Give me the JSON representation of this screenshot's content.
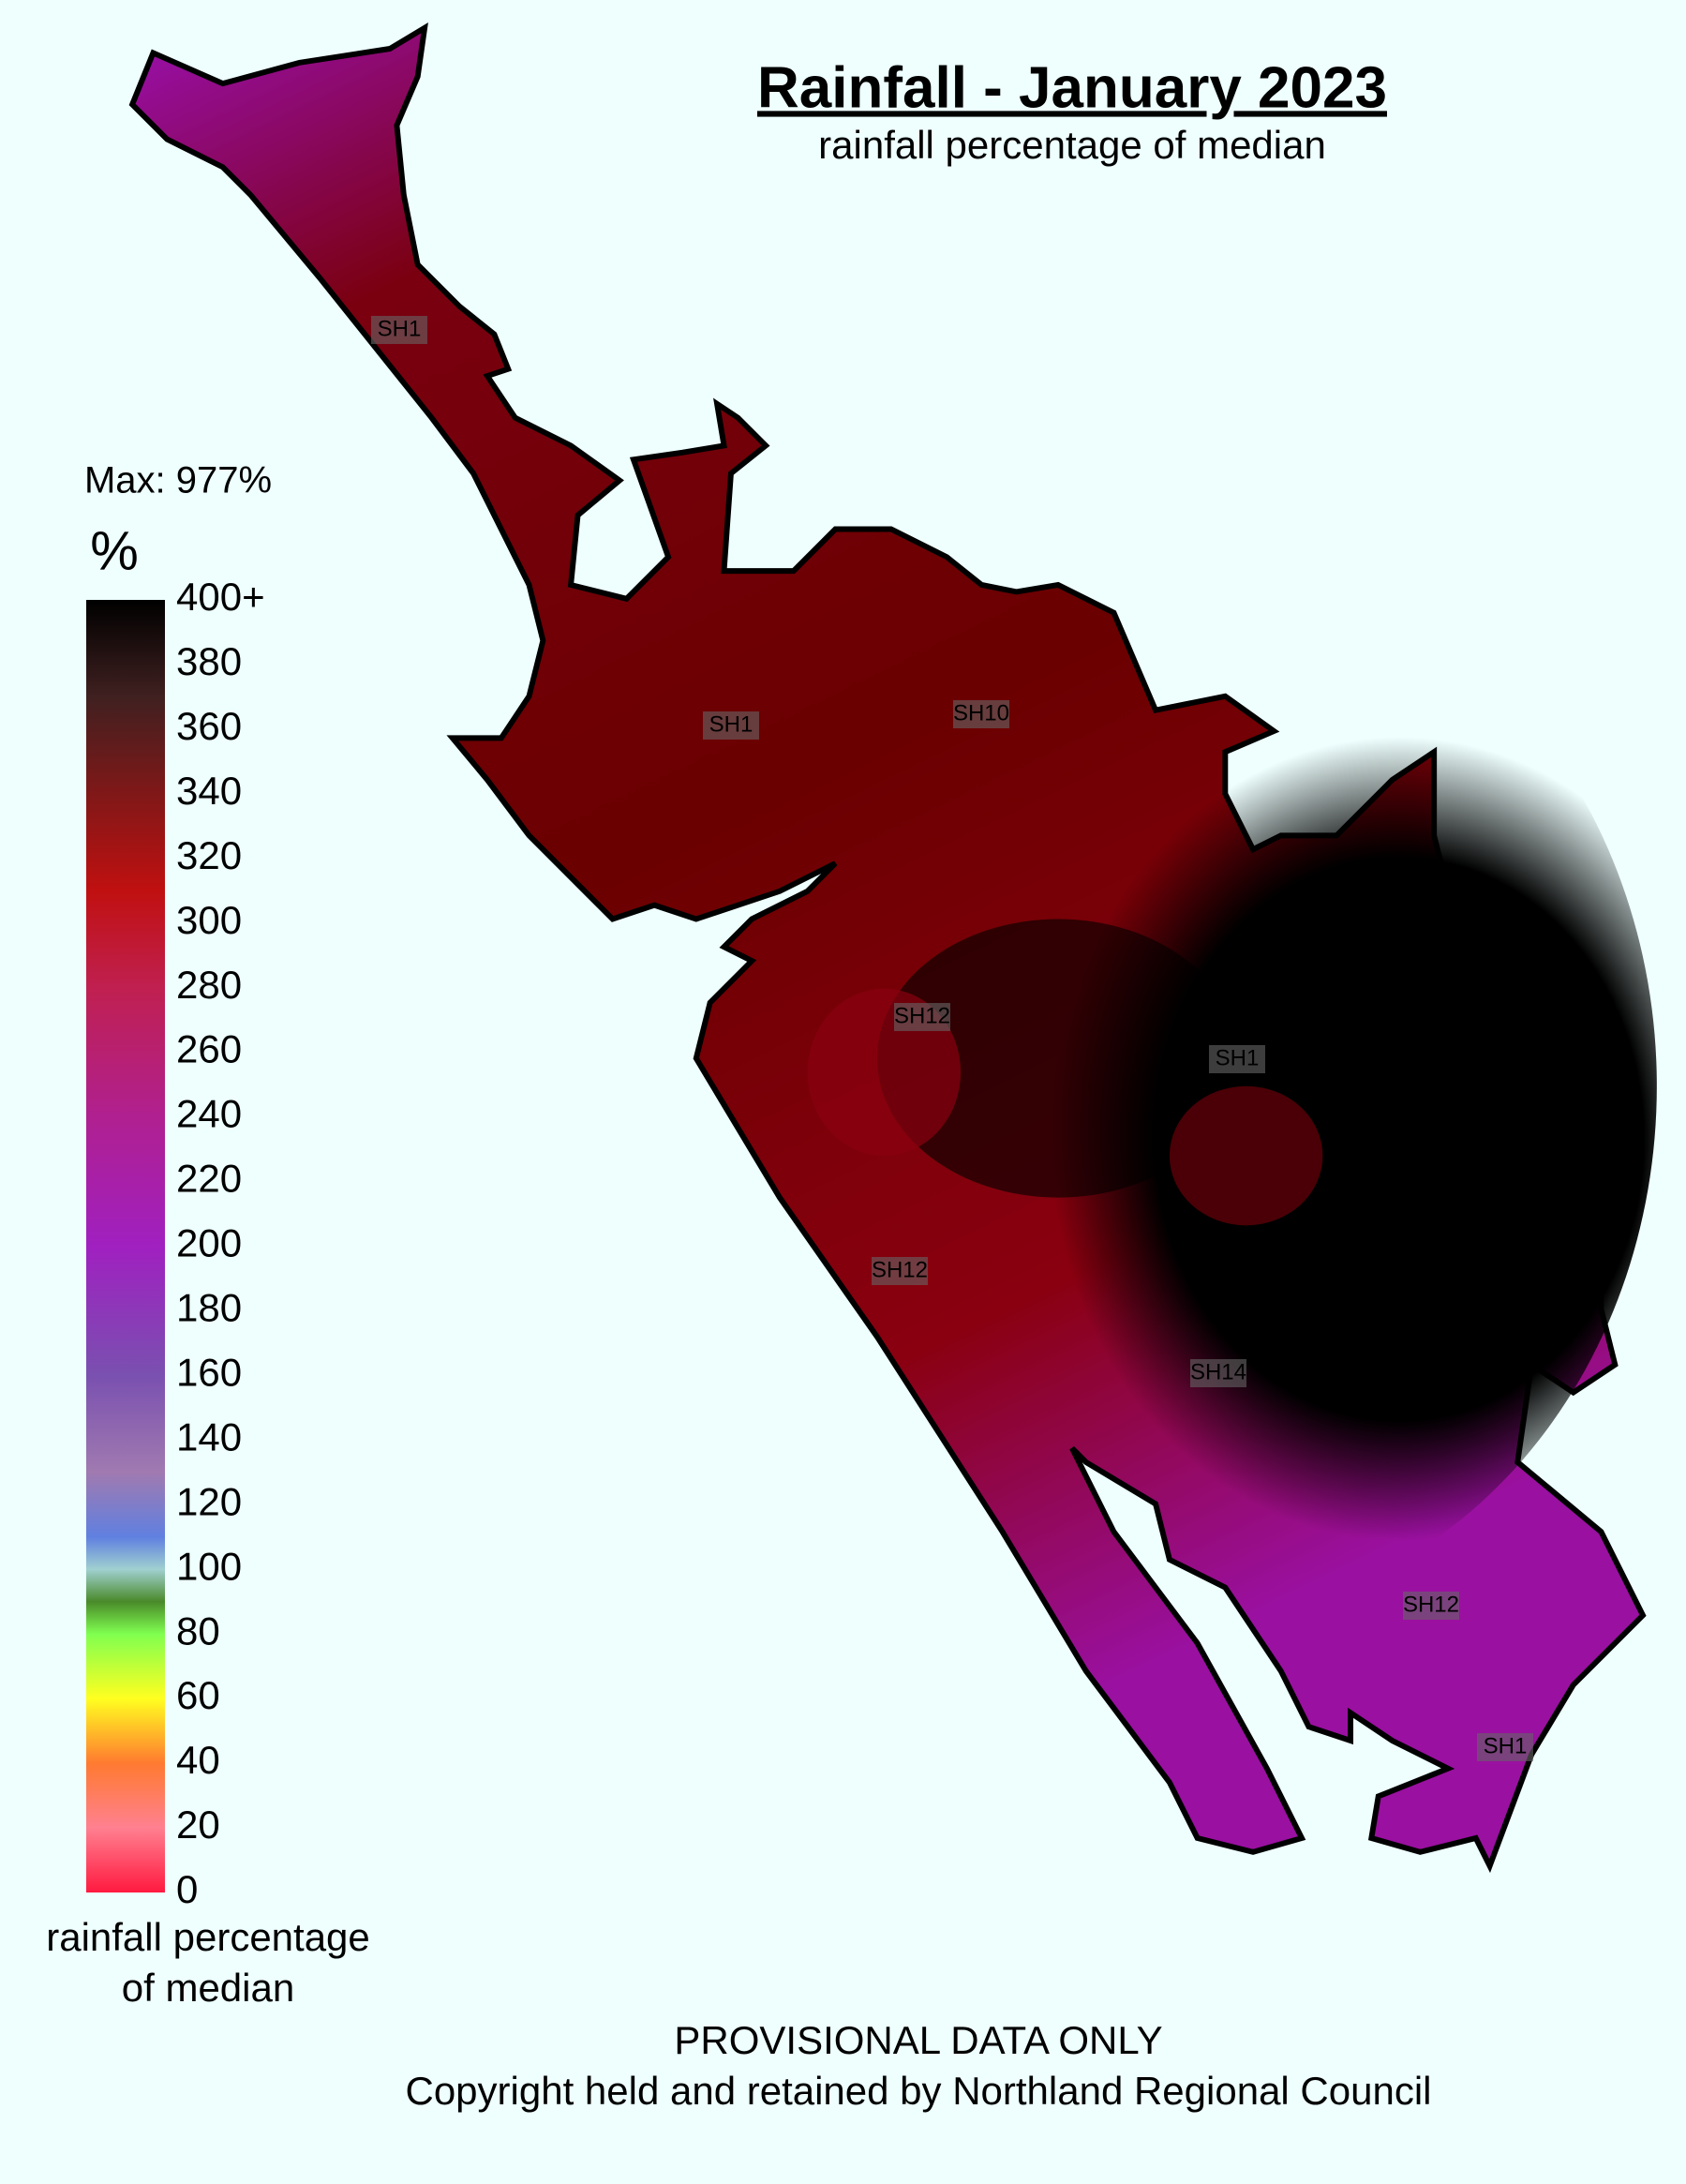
{
  "title": "Rainfall - January 2023",
  "subtitle": "rainfall percentage of median",
  "legend": {
    "max_label": "Max: 977%",
    "unit": "%",
    "ticks": [
      0,
      20,
      40,
      60,
      80,
      100,
      120,
      140,
      160,
      180,
      200,
      220,
      240,
      260,
      280,
      300,
      320,
      340,
      360,
      380,
      {
        "value": 400,
        "label": "400+"
      }
    ],
    "caption": [
      "rainfall percentage",
      "of median"
    ],
    "stops": [
      {
        "value": 0,
        "color": "#ff1a40"
      },
      {
        "value": 20,
        "color": "#ff8090"
      },
      {
        "value": 40,
        "color": "#ff7a30"
      },
      {
        "value": 60,
        "color": "#ffff20"
      },
      {
        "value": 80,
        "color": "#80ff50"
      },
      {
        "value": 90,
        "color": "#4a8a2a"
      },
      {
        "value": 100,
        "color": "#a0d0d0"
      },
      {
        "value": 110,
        "color": "#6080e0"
      },
      {
        "value": 130,
        "color": "#a07ab0"
      },
      {
        "value": 160,
        "color": "#7a50b0"
      },
      {
        "value": 200,
        "color": "#a020c0"
      },
      {
        "value": 240,
        "color": "#b02090"
      },
      {
        "value": 280,
        "color": "#c02050"
      },
      {
        "value": 310,
        "color": "#c01010"
      },
      {
        "value": 340,
        "color": "#801818"
      },
      {
        "value": 370,
        "color": "#402020"
      },
      {
        "value": 400,
        "color": "#000000"
      }
    ]
  },
  "roads": [
    "SH1",
    "SH1",
    "SH10",
    "SH12",
    "SH1",
    "SH12",
    "SH14",
    "SH12",
    "SH1"
  ],
  "footer": [
    "PROVISIONAL DATA ONLY",
    "Copyright held and retained by Northland Regional Council"
  ]
}
